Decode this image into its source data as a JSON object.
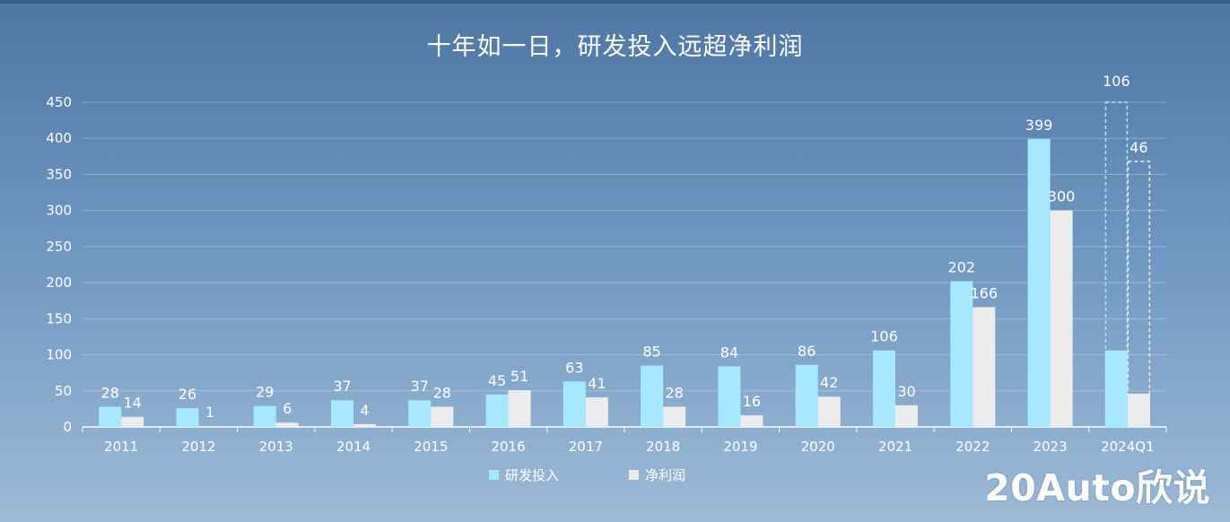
{
  "watermark": "20Auto欣说",
  "chart_data": {
    "type": "bar",
    "title": "十年如一日，研发投入远超净利润",
    "categories": [
      "2011",
      "2012",
      "2013",
      "2014",
      "2015",
      "2016",
      "2017",
      "2018",
      "2019",
      "2020",
      "2021",
      "2022",
      "2023",
      "2024Q1"
    ],
    "series": [
      {
        "name": "研发投入",
        "color": "#a6e8ff",
        "values": [
          28,
          26,
          29,
          37,
          37,
          45,
          63,
          85,
          84,
          86,
          106,
          202,
          399,
          106
        ]
      },
      {
        "name": "净利润",
        "color": "#ececec",
        "values": [
          14,
          1,
          6,
          4,
          28,
          51,
          41,
          28,
          16,
          42,
          30,
          166,
          300,
          46
        ]
      }
    ],
    "ylim": [
      0,
      450
    ],
    "yticks": [
      0,
      50,
      100,
      150,
      200,
      250,
      300,
      350,
      400,
      450
    ],
    "grid": true,
    "legend": "bottom-center",
    "annotation": "2024Q1 shown with dashed outline boxes"
  }
}
